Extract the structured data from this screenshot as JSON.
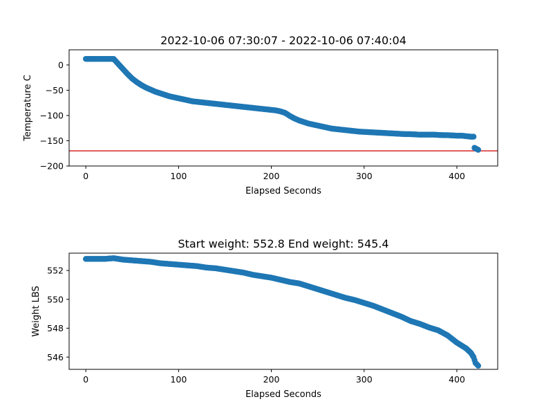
{
  "chart_data": [
    {
      "type": "scatter",
      "title": "2022-10-06 07:30:07 - 2022-10-06 07:40:04",
      "xlabel": "Elapsed Seconds",
      "ylabel": "Temperature C",
      "xlim": [
        -18,
        444
      ],
      "ylim": [
        -200,
        30
      ],
      "xticks": [
        "0",
        "100",
        "200",
        "300",
        "400"
      ],
      "xtick_values": [
        0,
        100,
        200,
        300,
        400
      ],
      "yticks": [
        "0",
        "−50",
        "−100",
        "−150",
        "−200"
      ],
      "ytick_values": [
        0,
        -50,
        -100,
        -150,
        -200
      ],
      "grid": false,
      "marker_color": "#1f77b4",
      "reference_line": {
        "y": -170,
        "color": "#d62728"
      },
      "series": [
        {
          "points": [
            [
              0,
              12
            ],
            [
              5,
              12
            ],
            [
              10,
              12
            ],
            [
              15,
              12
            ],
            [
              20,
              12
            ],
            [
              25,
              12
            ],
            [
              30,
              12
            ],
            [
              35,
              2
            ],
            [
              40,
              -8
            ],
            [
              45,
              -18
            ],
            [
              50,
              -27
            ],
            [
              55,
              -34
            ],
            [
              60,
              -40
            ],
            [
              65,
              -45
            ],
            [
              70,
              -49
            ],
            [
              75,
              -53
            ],
            [
              80,
              -56
            ],
            [
              85,
              -59
            ],
            [
              90,
              -62
            ],
            [
              95,
              -64
            ],
            [
              100,
              -66
            ],
            [
              105,
              -68
            ],
            [
              110,
              -70
            ],
            [
              115,
              -72
            ],
            [
              120,
              -73
            ],
            [
              125,
              -74
            ],
            [
              130,
              -75
            ],
            [
              135,
              -76
            ],
            [
              140,
              -77
            ],
            [
              145,
              -78
            ],
            [
              150,
              -79
            ],
            [
              155,
              -80
            ],
            [
              160,
              -81
            ],
            [
              165,
              -82
            ],
            [
              170,
              -83
            ],
            [
              175,
              -84
            ],
            [
              180,
              -85
            ],
            [
              185,
              -86
            ],
            [
              190,
              -87
            ],
            [
              195,
              -88
            ],
            [
              200,
              -89
            ],
            [
              205,
              -90
            ],
            [
              210,
              -92
            ],
            [
              215,
              -95
            ],
            [
              220,
              -101
            ],
            [
              225,
              -106
            ],
            [
              230,
              -110
            ],
            [
              235,
              -113
            ],
            [
              240,
              -116
            ],
            [
              245,
              -118
            ],
            [
              250,
              -120
            ],
            [
              255,
              -122
            ],
            [
              260,
              -124
            ],
            [
              265,
              -126
            ],
            [
              270,
              -127
            ],
            [
              275,
              -128
            ],
            [
              280,
              -129
            ],
            [
              285,
              -130
            ],
            [
              290,
              -131
            ],
            [
              295,
              -132
            ],
            [
              300,
              -132.5
            ],
            [
              305,
              -133
            ],
            [
              310,
              -133.5
            ],
            [
              315,
              -134
            ],
            [
              320,
              -134.5
            ],
            [
              325,
              -135
            ],
            [
              330,
              -135.5
            ],
            [
              335,
              -136
            ],
            [
              340,
              -136.5
            ],
            [
              345,
              -137
            ],
            [
              350,
              -137
            ],
            [
              355,
              -137.5
            ],
            [
              360,
              -138
            ],
            [
              365,
              -138
            ],
            [
              370,
              -138
            ],
            [
              375,
              -138
            ],
            [
              380,
              -138.5
            ],
            [
              385,
              -139
            ],
            [
              390,
              -139
            ],
            [
              395,
              -139.5
            ],
            [
              400,
              -140
            ],
            [
              405,
              -140
            ],
            [
              410,
              -141
            ],
            [
              415,
              -142
            ],
            [
              418,
              -142
            ],
            [
              419,
              -164
            ],
            [
              421,
              -166
            ],
            [
              423,
              -168
            ]
          ]
        }
      ]
    },
    {
      "type": "scatter",
      "title": "Start weight: 552.8 End weight: 545.4",
      "xlabel": "Elapsed Seconds",
      "ylabel": "Weight LBS",
      "xlim": [
        -18,
        444
      ],
      "ylim": [
        545.15,
        553.2
      ],
      "xticks": [
        "0",
        "100",
        "200",
        "300",
        "400"
      ],
      "xtick_values": [
        0,
        100,
        200,
        300,
        400
      ],
      "yticks": [
        "552",
        "550",
        "548",
        "546"
      ],
      "ytick_values": [
        552,
        550,
        548,
        546
      ],
      "grid": false,
      "marker_color": "#1f77b4",
      "series": [
        {
          "points": [
            [
              0,
              552.8
            ],
            [
              10,
              552.8
            ],
            [
              20,
              552.8
            ],
            [
              30,
              552.85
            ],
            [
              40,
              552.75
            ],
            [
              50,
              552.7
            ],
            [
              60,
              552.65
            ],
            [
              70,
              552.6
            ],
            [
              80,
              552.5
            ],
            [
              90,
              552.45
            ],
            [
              100,
              552.4
            ],
            [
              110,
              552.35
            ],
            [
              120,
              552.3
            ],
            [
              130,
              552.2
            ],
            [
              140,
              552.15
            ],
            [
              150,
              552.05
            ],
            [
              160,
              551.95
            ],
            [
              170,
              551.85
            ],
            [
              180,
              551.7
            ],
            [
              190,
              551.6
            ],
            [
              200,
              551.5
            ],
            [
              210,
              551.35
            ],
            [
              220,
              551.2
            ],
            [
              230,
              551.1
            ],
            [
              240,
              550.9
            ],
            [
              250,
              550.7
            ],
            [
              260,
              550.5
            ],
            [
              270,
              550.3
            ],
            [
              280,
              550.1
            ],
            [
              290,
              549.95
            ],
            [
              300,
              549.75
            ],
            [
              310,
              549.55
            ],
            [
              320,
              549.3
            ],
            [
              330,
              549.05
            ],
            [
              340,
              548.8
            ],
            [
              350,
              548.5
            ],
            [
              360,
              548.3
            ],
            [
              370,
              548.05
            ],
            [
              380,
              547.85
            ],
            [
              390,
              547.5
            ],
            [
              400,
              547.0
            ],
            [
              410,
              546.6
            ],
            [
              415,
              546.3
            ],
            [
              418,
              546.0
            ],
            [
              420,
              545.6
            ],
            [
              423,
              545.4
            ]
          ]
        }
      ]
    }
  ]
}
